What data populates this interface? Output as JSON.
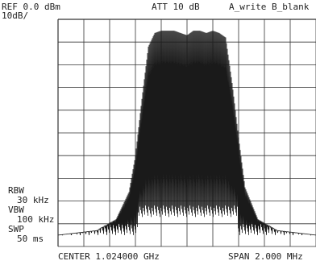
{
  "header": {
    "ref_level": "REF 0.0 dBm",
    "scale": "10dB/",
    "attenuation": "ATT 10 dB",
    "trace_mode": "A_write B_blank"
  },
  "settings": {
    "rbw_label": "RBW",
    "rbw_value": "30 kHz",
    "vbw_label": "VBW",
    "vbw_value": "100 kHz",
    "swp_label": "SWP",
    "swp_value": "50 ms"
  },
  "footer": {
    "center": "CENTER 1.024000 GHz",
    "span": "SPAN 2.000 MHz"
  },
  "chart_data": {
    "type": "line",
    "center_ghz": 1.024,
    "span_mhz": 2.0,
    "xlim_mhz": [
      -1.0,
      1.0
    ],
    "ylim_db": [
      -100,
      0
    ],
    "grid": true,
    "grid_divisions": {
      "x": 10,
      "y": 10
    },
    "series": [
      {
        "x": [
          -1.0,
          -0.85,
          -0.7,
          -0.55,
          -0.45,
          -0.4,
          -0.35,
          -0.3,
          -0.25,
          -0.2,
          -0.15,
          -0.1,
          -0.05,
          0.0,
          0.05,
          0.1,
          0.15,
          0.2,
          0.25,
          0.3,
          0.35,
          0.4,
          0.45,
          0.55,
          0.7,
          0.85,
          1.0
        ],
        "values": [
          -95,
          -94,
          -93,
          -88,
          -76,
          -60,
          -35,
          -12,
          -6,
          -5,
          -5,
          -5,
          -6,
          -7,
          -5,
          -5,
          -6,
          -5,
          -6,
          -8,
          -28,
          -52,
          -74,
          -88,
          -93,
          -94,
          -95
        ]
      }
    ],
    "color": "#1a1a1a"
  }
}
